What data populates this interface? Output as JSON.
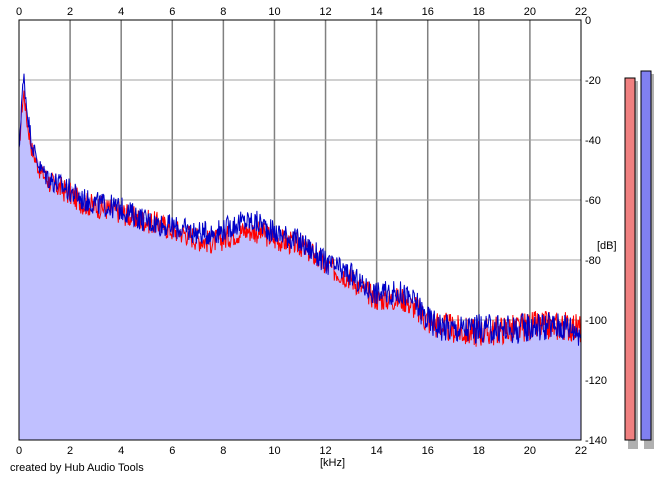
{
  "chart_data": {
    "type": "area",
    "x_ticks": [
      "0",
      "2",
      "4",
      "6",
      "8",
      "10",
      "12",
      "14",
      "16",
      "18",
      "20",
      "22"
    ],
    "y_ticks": [
      "0",
      "-20",
      "-40",
      "-60",
      "-80",
      "-100",
      "-120",
      "-140"
    ],
    "xlabel": "[kHz]",
    "ylabel": "[dB]",
    "xlim": [
      0,
      22
    ],
    "ylim": [
      -140,
      0
    ],
    "grid": true,
    "colors": {
      "fill": "#c0c0ff",
      "left": "#ff0000",
      "right": "#0000c8",
      "meter_left": "#f08080",
      "meter_right": "#8080f0"
    },
    "envelope": [
      [
        0,
        -45
      ],
      [
        0.1,
        -28
      ],
      [
        0.2,
        -20
      ],
      [
        0.3,
        -30
      ],
      [
        0.5,
        -40
      ],
      [
        0.8,
        -48
      ],
      [
        1.2,
        -51
      ],
      [
        1.6,
        -53
      ],
      [
        2,
        -55
      ],
      [
        2.5,
        -58
      ],
      [
        3,
        -60
      ],
      [
        3.5,
        -61
      ],
      [
        4,
        -62
      ],
      [
        4.5,
        -64
      ],
      [
        5,
        -66
      ],
      [
        5.5,
        -67
      ],
      [
        6,
        -69
      ],
      [
        6.5,
        -70
      ],
      [
        7,
        -72
      ],
      [
        7.5,
        -72
      ],
      [
        8,
        -71
      ],
      [
        8.5,
        -69
      ],
      [
        9,
        -68
      ],
      [
        9.5,
        -69
      ],
      [
        10,
        -71
      ],
      [
        10.5,
        -73
      ],
      [
        11,
        -74
      ],
      [
        11.5,
        -77
      ],
      [
        12,
        -81
      ],
      [
        12.5,
        -83
      ],
      [
        13,
        -85
      ],
      [
        13.5,
        -89
      ],
      [
        14,
        -92
      ],
      [
        14.5,
        -92
      ],
      [
        15,
        -91
      ],
      [
        15.5,
        -94
      ],
      [
        16,
        -99
      ],
      [
        16.5,
        -101
      ],
      [
        17,
        -102
      ],
      [
        17.5,
        -103
      ],
      [
        18,
        -103
      ],
      [
        18.5,
        -102
      ],
      [
        19,
        -102
      ],
      [
        19.5,
        -102
      ],
      [
        20,
        -101
      ],
      [
        20.5,
        -101
      ],
      [
        21,
        -101
      ],
      [
        21.5,
        -101
      ],
      [
        22,
        -103
      ]
    ],
    "series": [
      {
        "points": [
          [
            0,
            -45
          ],
          [
            0.1,
            -30
          ],
          [
            0.2,
            -24
          ],
          [
            0.3,
            -33
          ],
          [
            0.5,
            -43
          ],
          [
            0.8,
            -50
          ],
          [
            1.2,
            -54
          ],
          [
            1.6,
            -56
          ],
          [
            2,
            -58
          ],
          [
            2.5,
            -61
          ],
          [
            3,
            -62
          ],
          [
            3.5,
            -63
          ],
          [
            4,
            -64
          ],
          [
            4.5,
            -66
          ],
          [
            5,
            -67
          ],
          [
            5.5,
            -68
          ],
          [
            6,
            -70
          ],
          [
            6.5,
            -71
          ],
          [
            7,
            -73
          ],
          [
            7.5,
            -74
          ],
          [
            8,
            -73
          ],
          [
            8.5,
            -71
          ],
          [
            9,
            -70
          ],
          [
            9.5,
            -71
          ],
          [
            10,
            -73
          ],
          [
            10.5,
            -74
          ],
          [
            11,
            -75
          ],
          [
            11.5,
            -78
          ],
          [
            12,
            -82
          ],
          [
            12.5,
            -84
          ],
          [
            13,
            -86
          ],
          [
            13.5,
            -90
          ],
          [
            14,
            -93
          ],
          [
            14.5,
            -93
          ],
          [
            15,
            -93
          ],
          [
            15.5,
            -96
          ],
          [
            16,
            -100
          ],
          [
            16.5,
            -102
          ],
          [
            17,
            -103
          ],
          [
            17.5,
            -104
          ],
          [
            18,
            -104
          ],
          [
            18.5,
            -104
          ],
          [
            19,
            -103
          ],
          [
            19.5,
            -103
          ],
          [
            20,
            -102
          ],
          [
            20.5,
            -102
          ],
          [
            21,
            -102
          ],
          [
            21.5,
            -102
          ],
          [
            22,
            -103
          ]
        ]
      },
      {
        "points": [
          [
            0,
            -45
          ],
          [
            0.1,
            -27
          ],
          [
            0.2,
            -19
          ],
          [
            0.3,
            -29
          ],
          [
            0.5,
            -41
          ],
          [
            0.8,
            -49
          ],
          [
            1.2,
            -53
          ],
          [
            1.6,
            -55
          ],
          [
            2,
            -57
          ],
          [
            2.5,
            -60
          ],
          [
            3,
            -61
          ],
          [
            3.5,
            -62
          ],
          [
            4,
            -63
          ],
          [
            4.5,
            -65
          ],
          [
            5,
            -67
          ],
          [
            5.5,
            -68
          ],
          [
            6,
            -69
          ],
          [
            6.5,
            -70
          ],
          [
            7,
            -71
          ],
          [
            7.5,
            -71
          ],
          [
            8,
            -70
          ],
          [
            8.5,
            -68
          ],
          [
            9,
            -67
          ],
          [
            9.5,
            -68
          ],
          [
            10,
            -71
          ],
          [
            10.5,
            -72
          ],
          [
            11,
            -74
          ],
          [
            11.5,
            -77
          ],
          [
            12,
            -81
          ],
          [
            12.5,
            -83
          ],
          [
            13,
            -85
          ],
          [
            13.5,
            -89
          ],
          [
            14,
            -91
          ],
          [
            14.5,
            -91
          ],
          [
            15,
            -91
          ],
          [
            15.5,
            -94
          ],
          [
            16,
            -100
          ],
          [
            16.5,
            -102
          ],
          [
            17,
            -103
          ],
          [
            17.5,
            -103
          ],
          [
            18,
            -103
          ],
          [
            18.5,
            -103
          ],
          [
            19,
            -103
          ],
          [
            19.5,
            -103
          ],
          [
            20,
            -102
          ],
          [
            20.5,
            -102
          ],
          [
            21,
            -102
          ],
          [
            21.5,
            -102
          ],
          [
            22,
            -104
          ]
        ]
      }
    ],
    "level_meters": [
      {
        "channel": "left",
        "peak_db": -12
      },
      {
        "channel": "right",
        "peak_db": -11
      }
    ]
  },
  "credit": "created by Hub Audio Tools"
}
